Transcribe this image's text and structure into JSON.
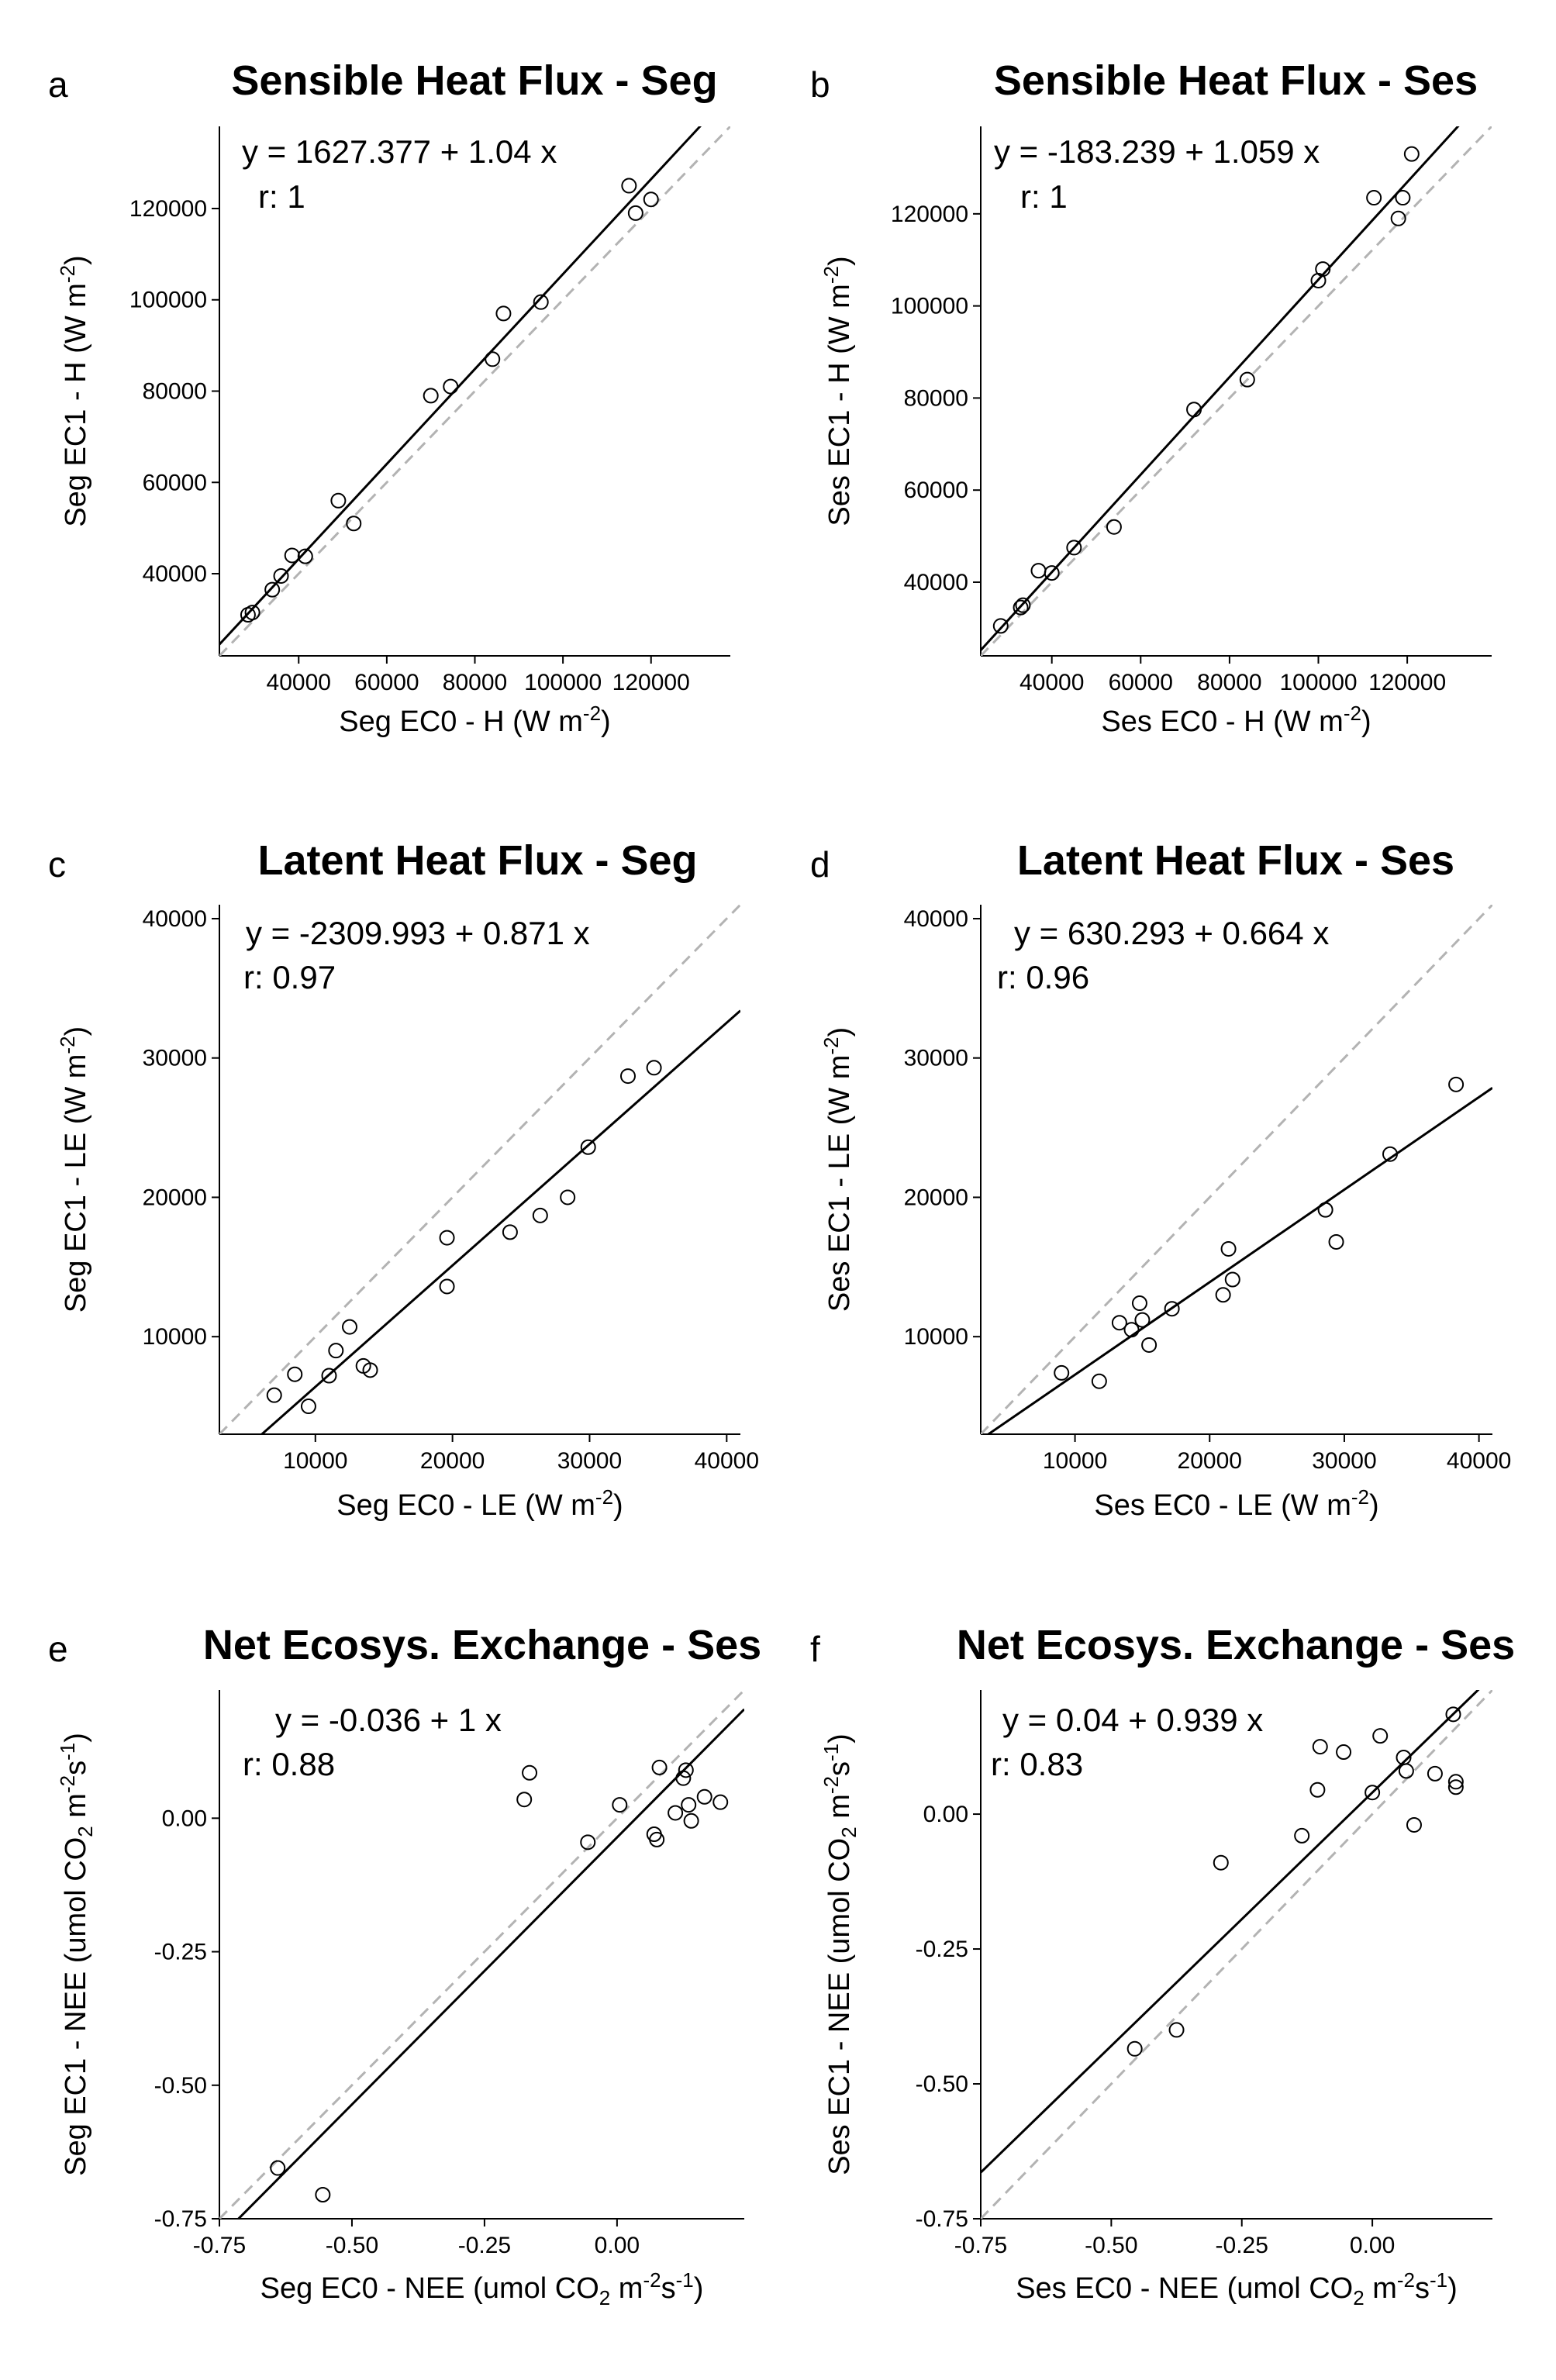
{
  "chart_data": [
    {
      "type": "scatter",
      "panel": "a",
      "title": "Sensible Heat Flux - Seg",
      "xlabel": {
        "main": "Seg EC0 - H (W m",
        "sup": "-2",
        "end": ")"
      },
      "ylabel": {
        "main": "Seg EC1 - H (W m",
        "sup": "-2",
        "end": ")"
      },
      "equation": "y =  1627.377 + 1.04 x",
      "r_text": "r:  1",
      "fit": {
        "intercept": 1627.377,
        "slope": 1.04
      },
      "xlim": [
        22000,
        138000
      ],
      "ylim": [
        22000,
        138000
      ],
      "xticks": [
        40000,
        60000,
        80000,
        100000,
        120000
      ],
      "yticks": [
        40000,
        60000,
        80000,
        100000,
        120000
      ],
      "xtick_labels": [
        "40000",
        "60000",
        "80000",
        "100000",
        "120000"
      ],
      "ytick_labels": [
        "40000",
        "60000",
        "80000",
        "100000",
        "120000"
      ],
      "points": [
        [
          28500,
          31000
        ],
        [
          29500,
          31500
        ],
        [
          34000,
          36500
        ],
        [
          36000,
          39500
        ],
        [
          38500,
          44000
        ],
        [
          41500,
          43800
        ],
        [
          49000,
          56000
        ],
        [
          52500,
          51000
        ],
        [
          70000,
          79000
        ],
        [
          74500,
          81000
        ],
        [
          84000,
          87000
        ],
        [
          86500,
          97000
        ],
        [
          95000,
          99500
        ],
        [
          115000,
          125000
        ],
        [
          116500,
          119000
        ],
        [
          120000,
          122000
        ]
      ]
    },
    {
      "type": "scatter",
      "panel": "b",
      "title": "Sensible Heat Flux - Ses",
      "xlabel": {
        "main": "Ses EC0 - H (W m",
        "sup": "-2",
        "end": ")"
      },
      "ylabel": {
        "main": "Ses EC1 - H (W m",
        "sup": "-2",
        "end": ")"
      },
      "equation": "y =  -183.239 + 1.059 x",
      "r_text": "r:  1",
      "fit": {
        "intercept": -183.239,
        "slope": 1.059
      },
      "xlim": [
        24000,
        139000
      ],
      "ylim": [
        24000,
        139000
      ],
      "xticks": [
        40000,
        60000,
        80000,
        100000,
        120000
      ],
      "yticks": [
        40000,
        60000,
        80000,
        100000,
        120000
      ],
      "xtick_labels": [
        "40000",
        "60000",
        "80000",
        "100000",
        "120000"
      ],
      "ytick_labels": [
        "40000",
        "60000",
        "80000",
        "100000",
        "120000"
      ],
      "points": [
        [
          28500,
          30500
        ],
        [
          33000,
          34500
        ],
        [
          33500,
          35000
        ],
        [
          37000,
          42500
        ],
        [
          40000,
          42000
        ],
        [
          45000,
          47500
        ],
        [
          54000,
          52000
        ],
        [
          72000,
          77500
        ],
        [
          84000,
          84000
        ],
        [
          100000,
          105500
        ],
        [
          101000,
          108000
        ],
        [
          112500,
          123500
        ],
        [
          118000,
          119000
        ],
        [
          119000,
          123500
        ],
        [
          121000,
          133000
        ]
      ]
    },
    {
      "type": "scatter",
      "panel": "c",
      "title": "Latent Heat Flux - Seg",
      "xlabel": {
        "main": "Seg EC0 - LE (W m",
        "sup": "-2",
        "end": ")"
      },
      "ylabel": {
        "main": "Seg EC1 - LE (W m",
        "sup": "-2",
        "end": ")"
      },
      "equation": "y =  -2309.993 + 0.871 x",
      "r_text": "r:  0.97",
      "fit": {
        "intercept": -2309.993,
        "slope": 0.871
      },
      "xlim": [
        3000,
        41000
      ],
      "ylim": [
        3000,
        41000
      ],
      "xticks": [
        10000,
        20000,
        30000,
        40000
      ],
      "yticks": [
        10000,
        20000,
        30000,
        40000
      ],
      "xtick_labels": [
        "10000",
        "20000",
        "30000",
        "40000"
      ],
      "ytick_labels": [
        "10000",
        "20000",
        "30000",
        "40000"
      ],
      "points": [
        [
          7000,
          5800
        ],
        [
          8500,
          7300
        ],
        [
          9500,
          5000
        ],
        [
          11000,
          7200
        ],
        [
          11500,
          9000
        ],
        [
          12500,
          10700
        ],
        [
          13500,
          7900
        ],
        [
          14000,
          7600
        ],
        [
          19600,
          17100
        ],
        [
          19600,
          13600
        ],
        [
          24200,
          17500
        ],
        [
          26400,
          18700
        ],
        [
          28400,
          20000
        ],
        [
          29900,
          23600
        ],
        [
          32800,
          28700
        ],
        [
          34700,
          29300
        ]
      ]
    },
    {
      "type": "scatter",
      "panel": "d",
      "title": "Latent Heat Flux - Ses",
      "xlabel": {
        "main": "Ses EC0 - LE (W m",
        "sup": "-2",
        "end": ")"
      },
      "ylabel": {
        "main": "Ses EC1 - LE (W m",
        "sup": "-2",
        "end": ")"
      },
      "equation": "y =  630.293 + 0.664 x",
      "r_text": "r:  0.96",
      "fit": {
        "intercept": 630.293,
        "slope": 0.664
      },
      "xlim": [
        3000,
        41000
      ],
      "ylim": [
        3000,
        41000
      ],
      "xticks": [
        10000,
        20000,
        30000,
        40000
      ],
      "yticks": [
        10000,
        20000,
        30000,
        40000
      ],
      "xtick_labels": [
        "10000",
        "20000",
        "30000",
        "40000"
      ],
      "ytick_labels": [
        "10000",
        "20000",
        "30000",
        "40000"
      ],
      "points": [
        [
          9000,
          7400
        ],
        [
          11800,
          6800
        ],
        [
          13300,
          11000
        ],
        [
          14200,
          10500
        ],
        [
          14800,
          12400
        ],
        [
          15000,
          11200
        ],
        [
          15500,
          9400
        ],
        [
          17200,
          12000
        ],
        [
          21000,
          13000
        ],
        [
          21400,
          16300
        ],
        [
          21700,
          14100
        ],
        [
          28600,
          19100
        ],
        [
          29400,
          16800
        ],
        [
          33400,
          23100
        ],
        [
          38300,
          28100
        ]
      ]
    },
    {
      "type": "scatter",
      "panel": "e",
      "title": "Net Ecosys. Exchange - Ses",
      "xlabel": {
        "main": "Seg EC0 - NEE (umol CO",
        "sub": "2",
        "mid": " m",
        "sup": "-2",
        "mid2": "s",
        "sup2": "-1",
        "end": ")"
      },
      "ylabel": {
        "main": "Seg EC1 - NEE (umol CO",
        "sub": "2",
        "mid": " m",
        "sup": "-2",
        "mid2": "s",
        "sup2": "-1",
        "end": ")"
      },
      "equation": "y =  -0.036 + 1 x",
      "r_text": "r:  0.88",
      "fit": {
        "intercept": -0.036,
        "slope": 1.0
      },
      "xlim": [
        -0.75,
        0.24
      ],
      "ylim": [
        -0.75,
        0.24
      ],
      "xticks": [
        -0.75,
        -0.5,
        -0.25,
        0.0
      ],
      "yticks": [
        -0.75,
        -0.5,
        -0.25,
        0.0
      ],
      "xtick_labels": [
        "-0.75",
        "-0.50",
        "-0.25",
        "0.00"
      ],
      "ytick_labels": [
        "-0.75",
        "-0.50",
        "-0.25",
        "0.00"
      ],
      "points": [
        [
          -0.64,
          -0.655
        ],
        [
          -0.555,
          -0.705
        ],
        [
          -0.175,
          0.035
        ],
        [
          -0.165,
          0.085
        ],
        [
          -0.055,
          -0.045
        ],
        [
          0.005,
          0.025
        ],
        [
          0.07,
          -0.03
        ],
        [
          0.075,
          -0.04
        ],
        [
          0.08,
          0.095
        ],
        [
          0.11,
          0.01
        ],
        [
          0.125,
          0.075
        ],
        [
          0.13,
          0.09
        ],
        [
          0.135,
          0.025
        ],
        [
          0.14,
          -0.005
        ],
        [
          0.165,
          0.04
        ],
        [
          0.195,
          0.03
        ]
      ]
    },
    {
      "type": "scatter",
      "panel": "f",
      "title": "Net Ecosys. Exchange - Ses",
      "xlabel": {
        "main": "Ses EC0 - NEE (umol CO",
        "sub": "2",
        "mid": " m",
        "sup": "-2",
        "mid2": "s",
        "sup2": "-1",
        "end": ")"
      },
      "ylabel": {
        "main": "Ses EC1 - NEE (umol CO",
        "sub": "2",
        "mid": " m",
        "sup": "-2",
        "mid2": "s",
        "sup2": "-1",
        "end": ")"
      },
      "equation": "y =  0.04 + 0.939 x",
      "r_text": "r:  0.83",
      "fit": {
        "intercept": 0.04,
        "slope": 0.939
      },
      "xlim": [
        -0.75,
        0.23
      ],
      "ylim": [
        -0.75,
        0.23
      ],
      "xticks": [
        -0.75,
        -0.5,
        -0.25,
        0.0
      ],
      "yticks": [
        -0.75,
        -0.5,
        -0.25,
        0.0
      ],
      "xtick_labels": [
        "-0.75",
        "-0.50",
        "-0.25",
        "0.00"
      ],
      "ytick_labels": [
        "-0.75",
        "-0.50",
        "-0.25",
        "0.00"
      ],
      "points": [
        [
          -0.455,
          -0.435
        ],
        [
          -0.375,
          -0.4
        ],
        [
          -0.29,
          -0.09
        ],
        [
          -0.135,
          -0.04
        ],
        [
          -0.105,
          0.045
        ],
        [
          -0.1,
          0.125
        ],
        [
          -0.055,
          0.115
        ],
        [
          0.0,
          0.04
        ],
        [
          0.015,
          0.145
        ],
        [
          0.06,
          0.105
        ],
        [
          0.065,
          0.08
        ],
        [
          0.08,
          -0.02
        ],
        [
          0.12,
          0.075
        ],
        [
          0.155,
          0.185
        ],
        [
          0.16,
          0.05
        ],
        [
          0.16,
          0.06
        ]
      ]
    }
  ],
  "colors": {
    "points": "#000000",
    "fit_line": "#000000",
    "identity_line": "#b3b3b3",
    "background": "#ffffff"
  }
}
